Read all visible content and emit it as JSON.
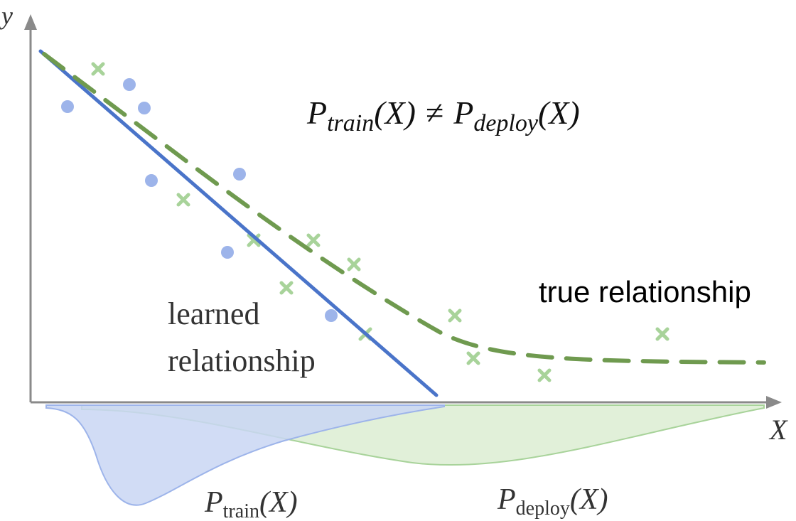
{
  "axes": {
    "y_label": "y",
    "x_label": "X"
  },
  "equation": {
    "lhs_symbol": "P",
    "lhs_subscript": "train",
    "lhs_arg": "(X)",
    "operator": "≠",
    "rhs_symbol": "P",
    "rhs_subscript": "deploy",
    "rhs_arg": "(X)"
  },
  "labels": {
    "learned_line1": "learned",
    "learned_line2": "relationship",
    "true_relationship": "true relationship"
  },
  "distributions": {
    "train_symbol": "P",
    "train_subscript": "train",
    "train_arg": "(X)",
    "deploy_symbol": "P",
    "deploy_subscript": "deploy",
    "deploy_arg": "(X)"
  },
  "colors": {
    "learned_line": "#4a74c9",
    "train_points": "#9db4ea",
    "true_line": "#6f9a4f",
    "deploy_points": "#a8d39a",
    "train_fill": "#c9d6f3",
    "deploy_fill": "#d9eccf",
    "axis": "#8a8a8a"
  },
  "icons": {
    "train_marker": "circle",
    "deploy_marker": "cross"
  }
}
